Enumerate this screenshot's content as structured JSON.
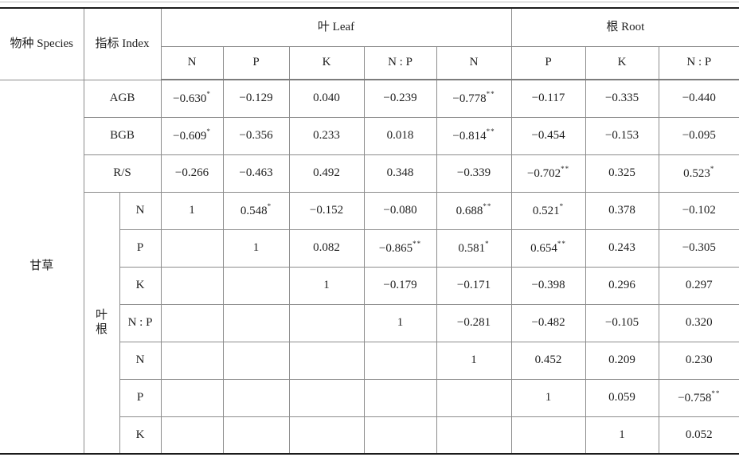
{
  "table": {
    "header": {
      "species": "物种 Species",
      "index": "指标 Index",
      "leaf_group": "叶 Leaf",
      "root_group": "根 Root",
      "sub_columns": [
        "N",
        "P",
        "K",
        "N : P",
        "N",
        "P",
        "K",
        "N : P"
      ]
    },
    "species_value": "甘草",
    "pair_group_label": [
      "叶",
      "根"
    ],
    "rows": [
      {
        "label": "AGB",
        "wide_label": true,
        "cells": [
          {
            "v": "−0.630",
            "s": "*"
          },
          {
            "v": "−0.129"
          },
          {
            "v": "0.040"
          },
          {
            "v": "−0.239"
          },
          {
            "v": "−0.778",
            "s": "**"
          },
          {
            "v": "−0.117"
          },
          {
            "v": "−0.335"
          },
          {
            "v": "−0.440"
          }
        ]
      },
      {
        "label": "BGB",
        "wide_label": true,
        "cells": [
          {
            "v": "−0.609",
            "s": "*"
          },
          {
            "v": "−0.356"
          },
          {
            "v": "0.233"
          },
          {
            "v": "0.018"
          },
          {
            "v": "−0.814",
            "s": "**"
          },
          {
            "v": "−0.454"
          },
          {
            "v": "−0.153"
          },
          {
            "v": "−0.095"
          }
        ]
      },
      {
        "label": "R/S",
        "wide_label": true,
        "cells": [
          {
            "v": "−0.266"
          },
          {
            "v": "−0.463"
          },
          {
            "v": "0.492"
          },
          {
            "v": "0.348"
          },
          {
            "v": "−0.339"
          },
          {
            "v": "−0.702",
            "s": "**"
          },
          {
            "v": "0.325"
          },
          {
            "v": "0.523",
            "s": "*"
          }
        ]
      },
      {
        "label": "N",
        "cells": [
          {
            "v": "1"
          },
          {
            "v": "0.548",
            "s": "*"
          },
          {
            "v": "−0.152"
          },
          {
            "v": "−0.080"
          },
          {
            "v": "0.688",
            "s": "**"
          },
          {
            "v": "0.521",
            "s": "*"
          },
          {
            "v": "0.378"
          },
          {
            "v": "−0.102"
          }
        ]
      },
      {
        "label": "P",
        "cells": [
          null,
          {
            "v": "1"
          },
          {
            "v": "0.082"
          },
          {
            "v": "−0.865",
            "s": "**"
          },
          {
            "v": "0.581",
            "s": "*"
          },
          {
            "v": "0.654",
            "s": "**"
          },
          {
            "v": "0.243"
          },
          {
            "v": "−0.305"
          }
        ]
      },
      {
        "label": "K",
        "cells": [
          null,
          null,
          {
            "v": "1"
          },
          {
            "v": "−0.179"
          },
          {
            "v": "−0.171"
          },
          {
            "v": "−0.398"
          },
          {
            "v": "0.296"
          },
          {
            "v": "0.297"
          }
        ]
      },
      {
        "label": "N : P",
        "cells": [
          null,
          null,
          null,
          {
            "v": "1"
          },
          {
            "v": "−0.281"
          },
          {
            "v": "−0.482"
          },
          {
            "v": "−0.105"
          },
          {
            "v": "0.320"
          }
        ]
      },
      {
        "label": "N",
        "cells": [
          null,
          null,
          null,
          null,
          {
            "v": "1"
          },
          {
            "v": "0.452"
          },
          {
            "v": "0.209"
          },
          {
            "v": "0.230"
          }
        ]
      },
      {
        "label": "P",
        "cells": [
          null,
          null,
          null,
          null,
          null,
          {
            "v": "1"
          },
          {
            "v": "0.059"
          },
          {
            "v": "−0.758",
            "s": "**"
          }
        ]
      },
      {
        "label": "K",
        "cells": [
          null,
          null,
          null,
          null,
          null,
          null,
          {
            "v": "1"
          },
          {
            "v": "0.052"
          }
        ]
      }
    ]
  }
}
